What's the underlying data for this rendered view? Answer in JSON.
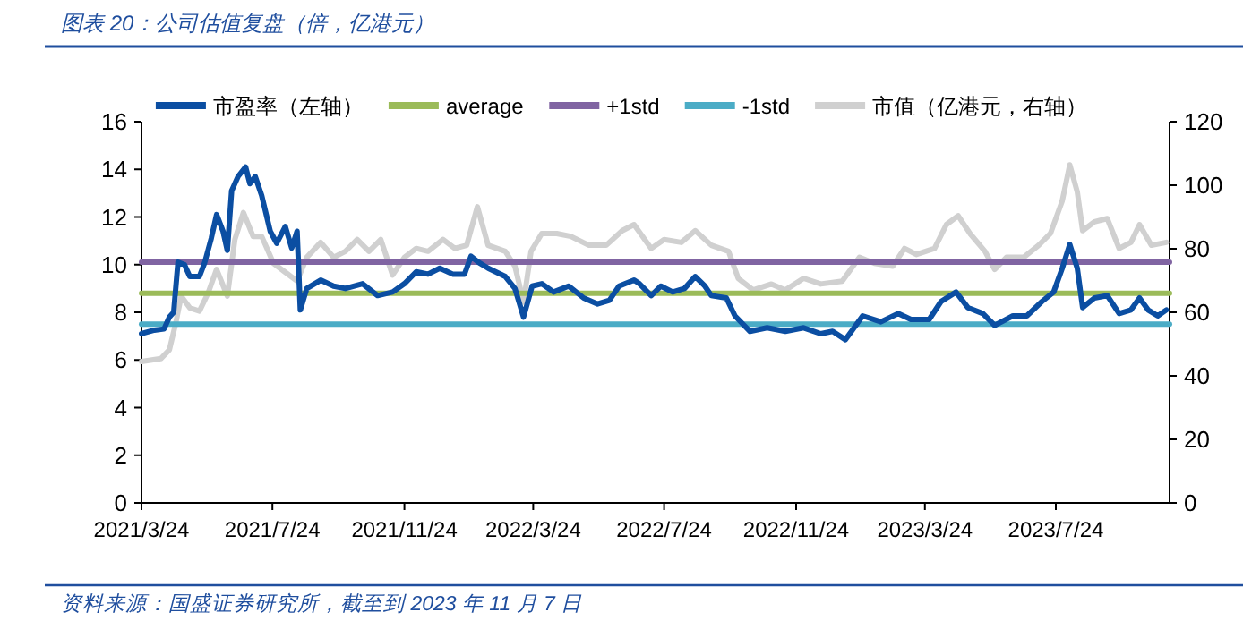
{
  "chart_data": {
    "type": "line",
    "title": "图表 20：公司估值复盘（倍，亿港元）",
    "annotations": [
      "资料来源：国盛证券研究所，截至到 2023 年 11 月 7 日"
    ],
    "xlim": [
      "2021-03-24",
      "2023-11-07"
    ],
    "xticks": [
      {
        "value": "2021-03-24",
        "label": "2021/3/24"
      },
      {
        "value": "2021-07-24",
        "label": "2021/7/24"
      },
      {
        "value": "2021-11-24",
        "label": "2021/11/24"
      },
      {
        "value": "2022-03-24",
        "label": "2022/3/24"
      },
      {
        "value": "2022-07-24",
        "label": "2022/7/24"
      },
      {
        "value": "2022-11-24",
        "label": "2022/11/24"
      },
      {
        "value": "2023-03-24",
        "label": "2023/3/24"
      },
      {
        "value": "2023-07-24",
        "label": "2023/7/24"
      }
    ],
    "ylim": [
      0,
      16
    ],
    "yticks": [
      0,
      2,
      4,
      6,
      8,
      10,
      12,
      14,
      16
    ],
    "y2lim": [
      0,
      120
    ],
    "y2ticks": [
      0,
      20,
      40,
      60,
      80,
      100,
      120
    ],
    "legend": "top",
    "series": [
      {
        "name": "市盈率（左轴）",
        "color": "#0b4ea2",
        "x": [
          "2021-03-24",
          "2021-04-05",
          "2021-04-14",
          "2021-04-19",
          "2021-04-23",
          "2021-04-27",
          "2021-05-03",
          "2021-05-08",
          "2021-05-17",
          "2021-05-22",
          "2021-05-28",
          "2021-06-02",
          "2021-06-08",
          "2021-06-12",
          "2021-06-16",
          "2021-06-22",
          "2021-06-29",
          "2021-07-03",
          "2021-07-08",
          "2021-07-14",
          "2021-07-22",
          "2021-07-28",
          "2021-08-05",
          "2021-08-11",
          "2021-08-16",
          "2021-08-19",
          "2021-08-25",
          "2021-09-07",
          "2021-09-19",
          "2021-09-30",
          "2021-10-16",
          "2021-10-30",
          "2021-11-13",
          "2021-11-24",
          "2021-12-05",
          "2021-12-16",
          "2021-12-27",
          "2022-01-08",
          "2022-01-19",
          "2022-01-25",
          "2022-02-01",
          "2022-02-10",
          "2022-02-26",
          "2022-03-07",
          "2022-03-15",
          "2022-03-23",
          "2022-04-01",
          "2022-04-12",
          "2022-04-26",
          "2022-05-10",
          "2022-05-23",
          "2022-06-03",
          "2022-06-12",
          "2022-06-26",
          "2022-07-01",
          "2022-07-12",
          "2022-07-21",
          "2022-08-01",
          "2022-08-12",
          "2022-08-22",
          "2022-08-31",
          "2022-09-06",
          "2022-09-20",
          "2022-09-28",
          "2022-10-12",
          "2022-10-28",
          "2022-11-14",
          "2022-12-01",
          "2022-12-17",
          "2022-12-28",
          "2023-01-09",
          "2023-01-17",
          "2023-01-25",
          "2023-02-11",
          "2023-02-27",
          "2023-03-11",
          "2023-03-28",
          "2023-04-08",
          "2023-04-22",
          "2023-05-03",
          "2023-05-17",
          "2023-05-28",
          "2023-06-14",
          "2023-06-27",
          "2023-07-11",
          "2023-07-22",
          "2023-07-30",
          "2023-08-06",
          "2023-08-13",
          "2023-08-18",
          "2023-08-29",
          "2023-09-10",
          "2023-09-21",
          "2023-10-02",
          "2023-10-10",
          "2023-10-18",
          "2023-10-27",
          "2023-11-04"
        ],
        "values": [
          7.1,
          7.25,
          7.3,
          7.8,
          8.0,
          10.1,
          10.0,
          9.5,
          9.5,
          10.1,
          11.1,
          12.1,
          11.4,
          10.6,
          13.1,
          13.7,
          14.1,
          13.4,
          13.7,
          12.9,
          11.4,
          10.9,
          11.6,
          10.7,
          11.4,
          8.1,
          9.0,
          9.35,
          9.1,
          9.0,
          9.2,
          8.7,
          8.85,
          9.2,
          9.7,
          9.6,
          9.85,
          9.6,
          9.6,
          10.35,
          10.1,
          9.85,
          9.5,
          9.0,
          7.8,
          9.1,
          9.2,
          8.85,
          9.1,
          8.6,
          8.35,
          8.5,
          9.1,
          9.35,
          9.2,
          8.7,
          9.1,
          8.85,
          9.0,
          9.5,
          9.1,
          8.7,
          8.6,
          7.85,
          7.2,
          7.35,
          7.2,
          7.35,
          7.1,
          7.2,
          6.85,
          7.35,
          7.85,
          7.6,
          7.95,
          7.7,
          7.7,
          8.45,
          8.85,
          8.2,
          7.95,
          7.45,
          7.85,
          7.85,
          8.45,
          8.85,
          9.85,
          10.85,
          9.85,
          8.2,
          8.6,
          8.7,
          7.95,
          8.1,
          8.6,
          8.1,
          7.85,
          8.1
        ]
      },
      {
        "name": "average",
        "color": "#9bbb59",
        "x": [
          "2021-03-24",
          "2023-11-07"
        ],
        "values": [
          8.8,
          8.8
        ]
      },
      {
        "name": "+1std",
        "color": "#8064a2",
        "x": [
          "2021-03-24",
          "2023-11-07"
        ],
        "values": [
          10.1,
          10.1
        ]
      },
      {
        "name": "-1std",
        "color": "#4bacc6",
        "x": [
          "2021-03-24",
          "2023-11-07"
        ],
        "values": [
          7.5,
          7.5
        ]
      },
      {
        "name": "市值（亿港元，右轴）",
        "color": "#d0d0d0",
        "axis": "y2",
        "x": [
          "2021-03-24",
          "2021-04-11",
          "2021-04-19",
          "2021-04-25",
          "2021-04-30",
          "2021-05-08",
          "2021-05-17",
          "2021-05-25",
          "2021-06-02",
          "2021-06-12",
          "2021-06-19",
          "2021-06-27",
          "2021-07-06",
          "2021-07-14",
          "2021-07-25",
          "2021-08-05",
          "2021-08-16",
          "2021-08-25",
          "2021-09-07",
          "2021-09-19",
          "2021-09-30",
          "2021-10-11",
          "2021-10-22",
          "2021-11-02",
          "2021-11-13",
          "2021-11-24",
          "2021-12-05",
          "2021-12-16",
          "2021-12-30",
          "2022-01-10",
          "2022-01-21",
          "2022-01-31",
          "2022-02-10",
          "2022-02-26",
          "2022-03-07",
          "2022-03-15",
          "2022-03-22",
          "2022-04-01",
          "2022-04-15",
          "2022-04-28",
          "2022-05-15",
          "2022-05-31",
          "2022-06-15",
          "2022-06-26",
          "2022-07-12",
          "2022-07-24",
          "2022-08-09",
          "2022-08-22",
          "2022-09-06",
          "2022-09-22",
          "2022-10-01",
          "2022-10-15",
          "2022-11-01",
          "2022-11-14",
          "2022-12-01",
          "2022-12-17",
          "2023-01-06",
          "2023-01-22",
          "2023-02-05",
          "2023-02-22",
          "2023-03-05",
          "2023-03-16",
          "2023-04-02",
          "2023-04-13",
          "2023-04-24",
          "2023-05-05",
          "2023-05-19",
          "2023-05-28",
          "2023-06-08",
          "2023-06-24",
          "2023-07-08",
          "2023-07-19",
          "2023-07-30",
          "2023-08-06",
          "2023-08-13",
          "2023-08-18",
          "2023-08-29",
          "2023-09-10",
          "2023-09-21",
          "2023-10-02",
          "2023-10-10",
          "2023-10-21",
          "2023-11-04"
        ],
        "values": [
          44.5,
          45.4,
          48.2,
          56.7,
          65.1,
          61.4,
          60.4,
          66.0,
          73.5,
          65.1,
          82.9,
          91.4,
          83.9,
          83.9,
          75.4,
          72.6,
          69.8,
          77.3,
          82.0,
          77.3,
          79.2,
          82.9,
          79.2,
          82.9,
          71.7,
          77.3,
          80.1,
          79.2,
          82.9,
          80.1,
          81.1,
          93.2,
          81.1,
          79.2,
          74.5,
          63.2,
          79.2,
          84.8,
          84.8,
          83.9,
          81.1,
          81.1,
          85.7,
          87.6,
          80.1,
          82.9,
          82.0,
          85.7,
          81.1,
          79.2,
          70.7,
          67.0,
          68.9,
          67.0,
          70.7,
          68.9,
          69.8,
          77.3,
          75.4,
          74.5,
          80.1,
          78.2,
          80.1,
          87.6,
          90.4,
          84.8,
          79.2,
          73.5,
          77.3,
          77.3,
          81.1,
          84.8,
          95.1,
          106.4,
          97.9,
          85.7,
          88.5,
          89.5,
          80.1,
          82.0,
          87.6,
          81.1,
          82.0
        ]
      }
    ]
  }
}
